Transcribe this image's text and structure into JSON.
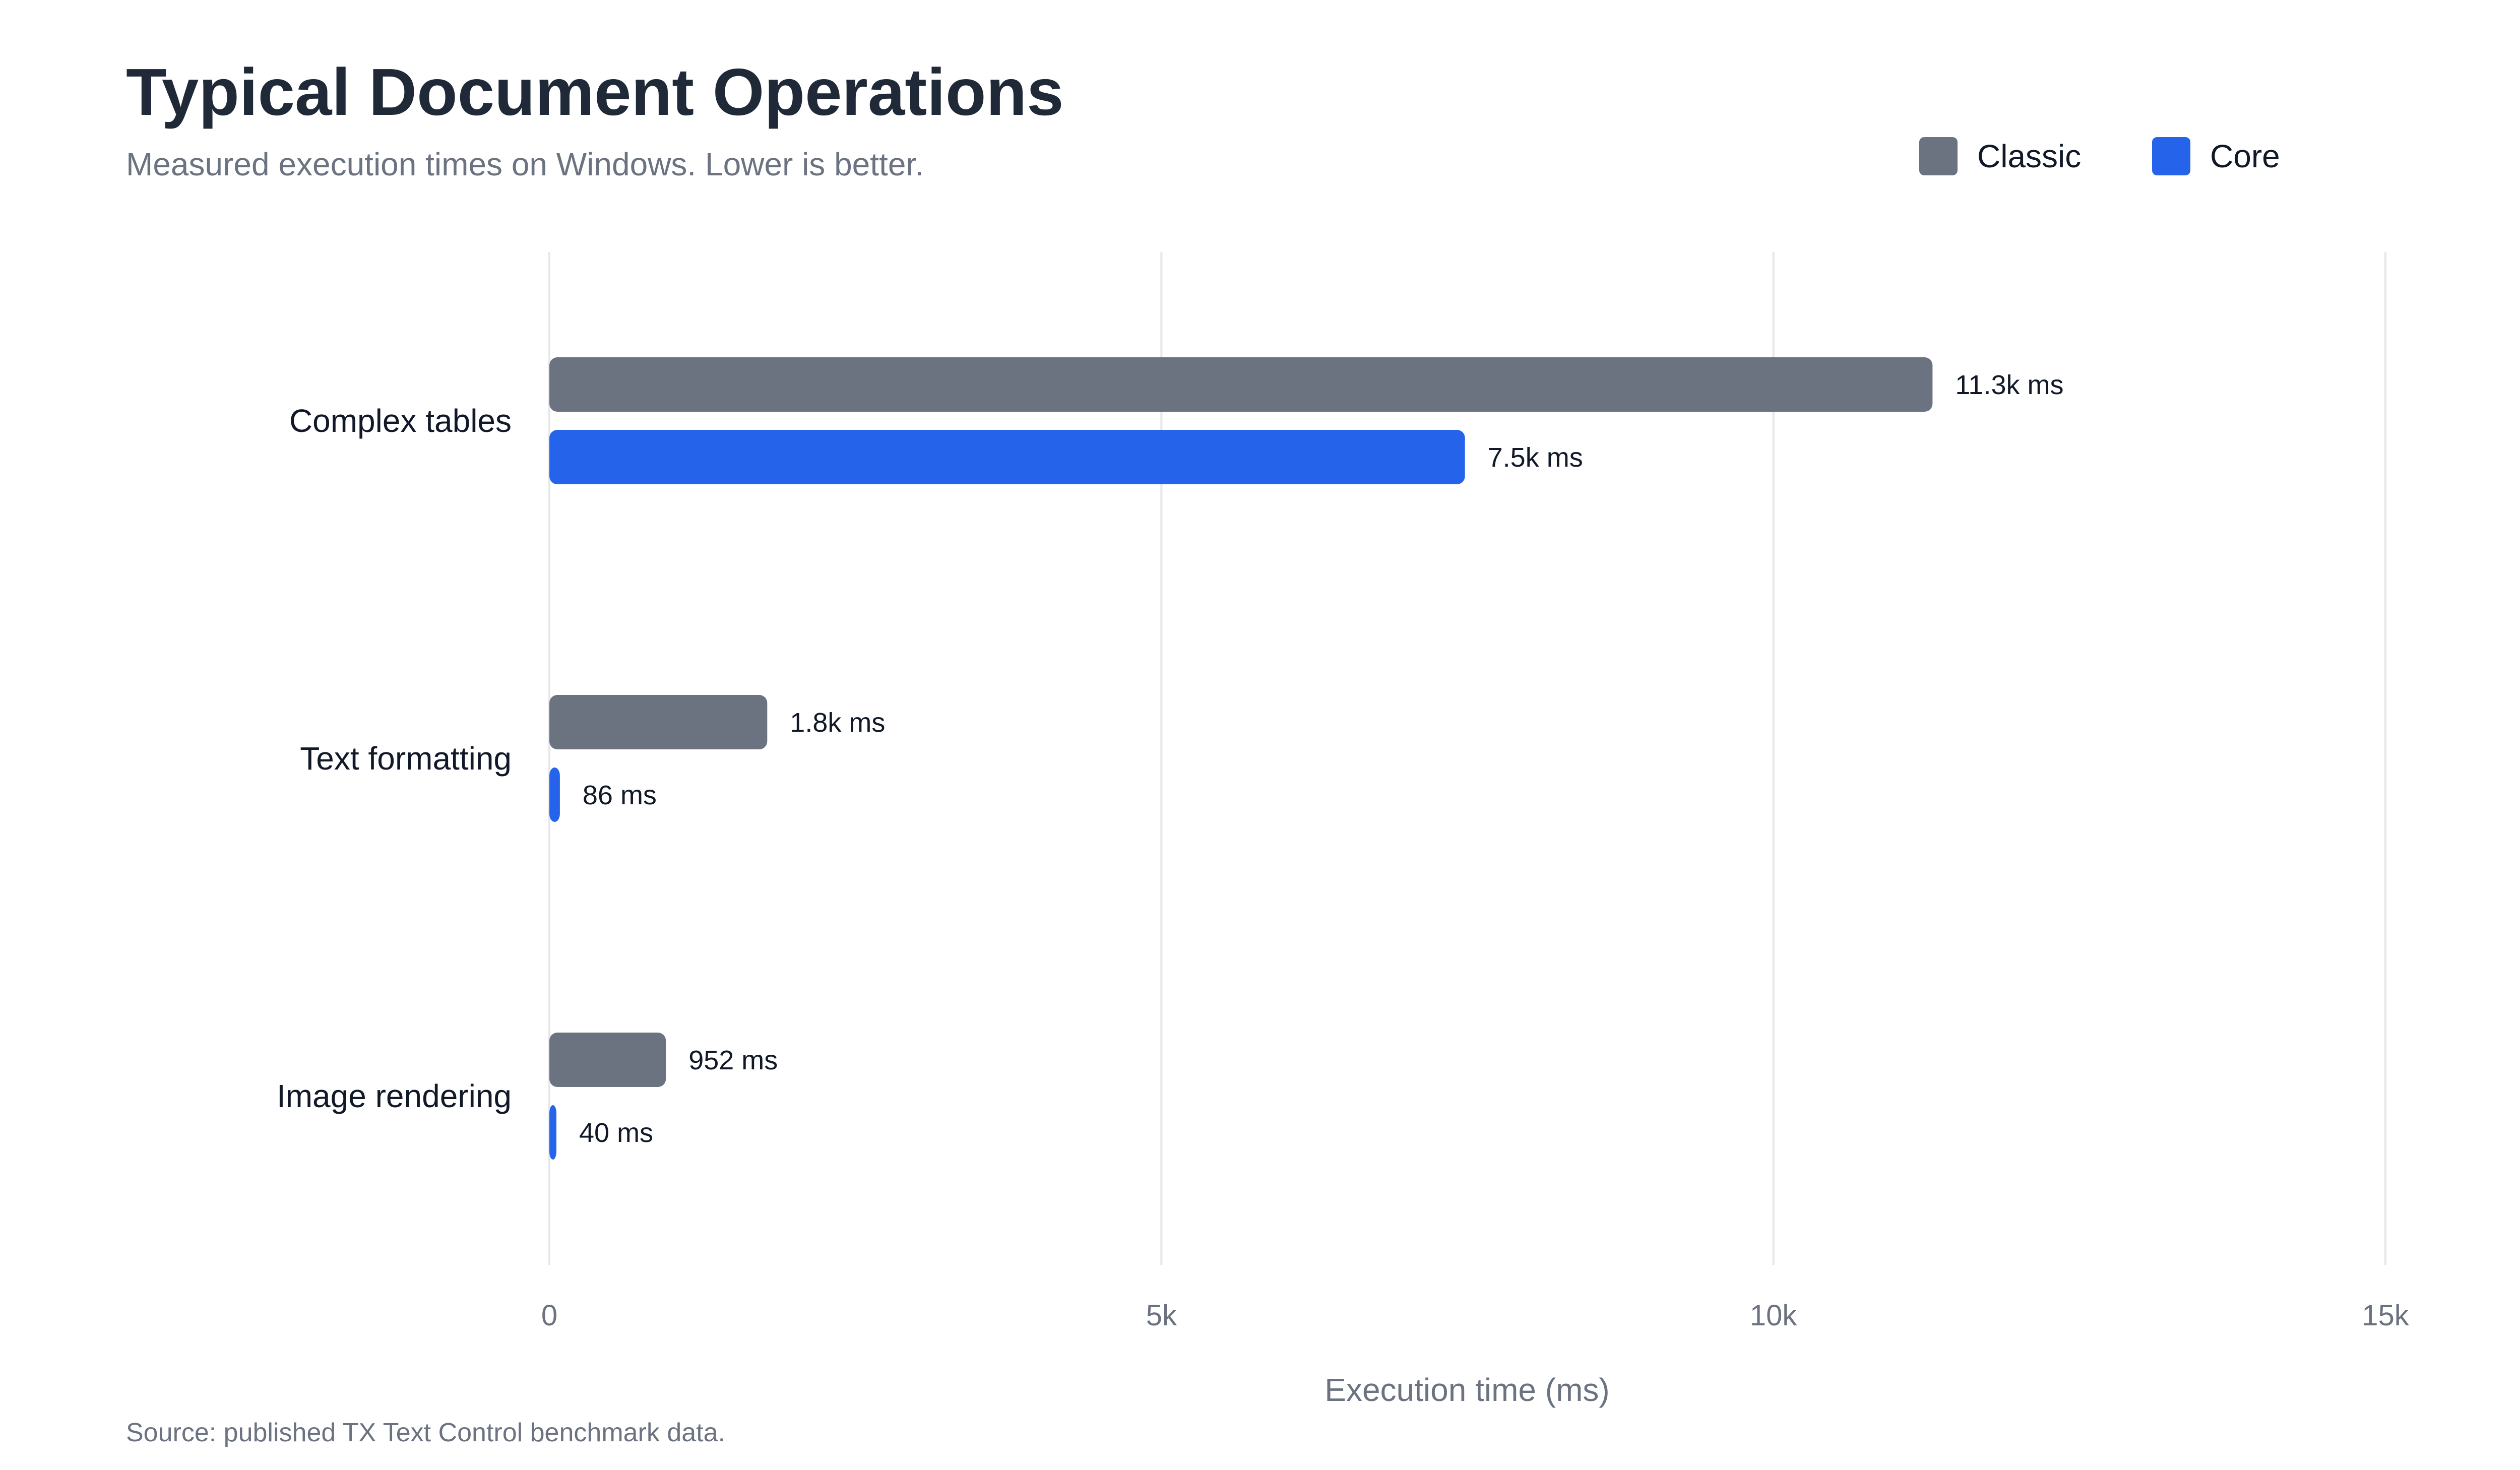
{
  "colors": {
    "classic": "#6b7280",
    "core": "#2563eb",
    "grid": "#e5e7eb"
  },
  "chart_data": {
    "type": "bar",
    "orientation": "horizontal",
    "title": "Typical Document Operations",
    "subtitle": "Measured execution times on Windows. Lower is better.",
    "xlabel": "Execution time (ms)",
    "ylabel": "",
    "xlim": [
      0,
      15000
    ],
    "xticks": [
      0,
      5000,
      10000,
      15000
    ],
    "xtick_labels": [
      "0",
      "5k",
      "10k",
      "15k"
    ],
    "grid": true,
    "legend_position": "top-right",
    "categories": [
      "Complex tables",
      "Text formatting",
      "Image rendering"
    ],
    "series": [
      {
        "name": "Classic",
        "color": "#6b7280",
        "values": [
          11300,
          1780,
          952
        ],
        "labels": [
          "11.3k ms",
          "1.8k ms",
          "952 ms"
        ]
      },
      {
        "name": "Core",
        "color": "#2563eb",
        "values": [
          7480,
          86,
          40
        ],
        "labels": [
          "7.5k ms",
          "86 ms",
          "40 ms"
        ]
      }
    ],
    "source": "Source: published TX Text Control benchmark data."
  }
}
